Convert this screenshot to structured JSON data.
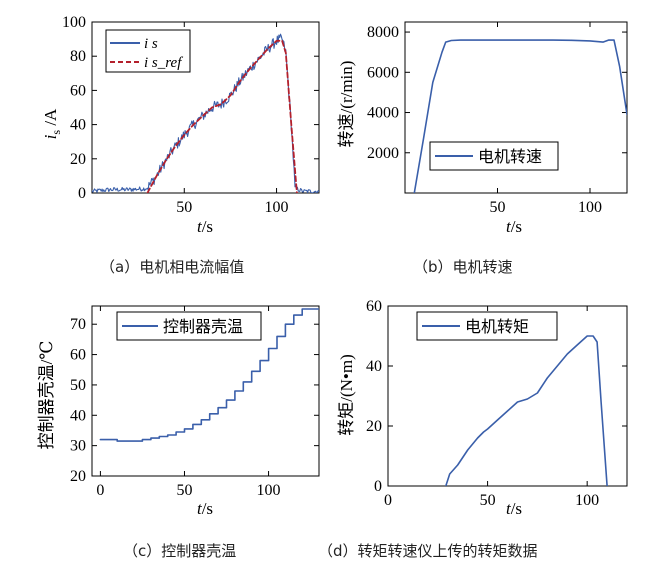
{
  "colors": {
    "blue": "#3a5faa",
    "red": "#b4202c",
    "axis": "#000000"
  },
  "chart_data": [
    {
      "id": "a",
      "type": "line",
      "caption": "（a）电机相电流幅值",
      "xlabel": "t/s",
      "ylabel": "i s /A",
      "xlim": [
        0,
        123
      ],
      "ylim": [
        0,
        100
      ],
      "xticks": [
        50,
        100
      ],
      "yticks": [
        0,
        20,
        40,
        60,
        80,
        100
      ],
      "x_tick_labels": [
        "50",
        "100"
      ],
      "y_tick_labels": [
        "0",
        "20",
        "40",
        "60",
        "80",
        "100"
      ],
      "legend": {
        "position": "top-left",
        "entries": [
          "i s",
          "i s_ref"
        ]
      },
      "series": [
        {
          "name": "i s",
          "color": "#3a5faa",
          "noisy": true,
          "x": [
            0,
            10,
            20,
            28,
            30,
            35,
            40,
            45,
            50,
            55,
            60,
            65,
            70,
            75,
            80,
            85,
            90,
            95,
            100,
            103,
            105,
            108,
            110,
            113,
            115,
            120,
            123
          ],
          "y": [
            1,
            2,
            2,
            2.5,
            3,
            10,
            19,
            27,
            34,
            40,
            45,
            50,
            52,
            57,
            65,
            72,
            78,
            84,
            89,
            90,
            82,
            40,
            3,
            1.5,
            1,
            1,
            1
          ]
        },
        {
          "name": "i s_ref",
          "color": "#b4202c",
          "x": [
            30,
            35,
            40,
            45,
            50,
            55,
            60,
            65,
            70,
            75,
            80,
            85,
            90,
            95,
            100,
            103,
            105,
            108,
            111
          ],
          "y": [
            0,
            10,
            19,
            27,
            34,
            40,
            45,
            50,
            52,
            57,
            65,
            72,
            78,
            84,
            89,
            89,
            82,
            40,
            0
          ]
        }
      ]
    },
    {
      "id": "b",
      "type": "line",
      "caption": "（b）电机转速",
      "xlabel": "t/s",
      "ylabel": "转速/(r/min)",
      "xlim": [
        0,
        120
      ],
      "ylim": [
        0,
        8500
      ],
      "xticks": [
        50,
        100
      ],
      "yticks": [
        2000,
        4000,
        6000,
        8000
      ],
      "x_tick_labels": [
        "50",
        "100"
      ],
      "y_tick_labels": [
        "2000",
        "4000",
        "6000",
        "8000"
      ],
      "legend": {
        "position": "lower-middle",
        "entries": [
          "电机转速"
        ]
      },
      "series": [
        {
          "name": "电机转速",
          "color": "#3a5faa",
          "x": [
            5,
            10,
            15,
            20,
            22,
            25,
            30,
            40,
            50,
            60,
            70,
            80,
            90,
            100,
            107,
            110,
            113,
            116,
            120
          ],
          "y": [
            0,
            2700,
            5500,
            7000,
            7500,
            7580,
            7600,
            7600,
            7600,
            7600,
            7600,
            7600,
            7590,
            7560,
            7500,
            7600,
            7600,
            6300,
            3900
          ]
        }
      ]
    },
    {
      "id": "c",
      "type": "line",
      "caption": "（c）控制器壳温",
      "xlabel": "t/s",
      "ylabel": "控制器壳温/℃",
      "xlim": [
        -5,
        130
      ],
      "ylim": [
        20,
        76
      ],
      "xticks": [
        0,
        50,
        100
      ],
      "yticks": [
        20,
        30,
        40,
        50,
        60,
        70
      ],
      "x_tick_labels": [
        "0",
        "50",
        "100"
      ],
      "y_tick_labels": [
        "20",
        "30",
        "40",
        "50",
        "60",
        "70"
      ],
      "legend": {
        "position": "top-left",
        "entries": [
          "控制器壳温"
        ]
      },
      "series": [
        {
          "name": "控制器壳温",
          "color": "#3a5faa",
          "step": true,
          "x": [
            0,
            10,
            20,
            25,
            30,
            35,
            40,
            45,
            50,
            55,
            60,
            65,
            70,
            75,
            80,
            85,
            90,
            95,
            100,
            105,
            110,
            115,
            120,
            125,
            130
          ],
          "y": [
            32,
            31.5,
            31.5,
            32,
            32.5,
            33,
            33.5,
            34.5,
            35.5,
            37,
            38.5,
            40.5,
            42.5,
            45,
            48,
            51,
            54.5,
            58,
            62,
            66,
            70,
            73,
            75,
            75,
            75
          ]
        }
      ]
    },
    {
      "id": "d",
      "type": "line",
      "caption": "（d）转矩转速仪上传的转矩数据",
      "xlabel": "t/s",
      "ylabel": "转矩/(N•m)",
      "xlim": [
        0,
        120
      ],
      "ylim": [
        0,
        60
      ],
      "xticks": [
        0,
        50,
        100
      ],
      "yticks": [
        0,
        20,
        40,
        60
      ],
      "x_tick_labels": [
        "0",
        "50",
        "100"
      ],
      "y_tick_labels": [
        "0",
        "20",
        "40",
        "60"
      ],
      "legend": {
        "position": "top-left",
        "entries": [
          "电机转矩"
        ]
      },
      "series": [
        {
          "name": "电机转矩",
          "color": "#3a5faa",
          "x": [
            29,
            31,
            35,
            40,
            45,
            48,
            50,
            55,
            60,
            65,
            70,
            75,
            80,
            85,
            90,
            95,
            100,
            103,
            105,
            107,
            110
          ],
          "y": [
            0,
            4,
            7,
            12,
            16,
            18,
            19,
            22,
            25,
            28,
            29,
            31,
            36,
            40,
            44,
            47,
            50,
            50,
            48,
            28,
            0
          ]
        }
      ]
    }
  ]
}
